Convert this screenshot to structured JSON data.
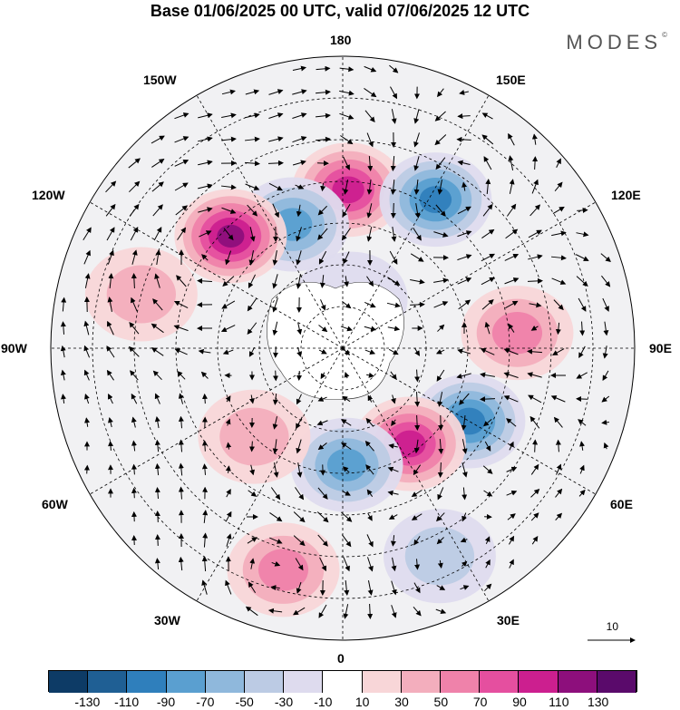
{
  "title": "Base 01/06/2025 00 UTC, valid 07/06/2025 12 UTC",
  "brand": "MODES",
  "brand_mark": "©",
  "longitude_labels": {
    "n180": "180",
    "w150": "150W",
    "e150": "150E",
    "w120": "120W",
    "e120": "120E",
    "w90": "90W",
    "e90": "90E",
    "w60": "60W",
    "e60": "60E",
    "w30": "30W",
    "e30": "30E",
    "s0": "0"
  },
  "reference_vector": "10",
  "colorbar": {
    "colors": [
      "#0d3b66",
      "#1f5f94",
      "#2f7fbc",
      "#5a9fd0",
      "#8fb8dc",
      "#bccbe4",
      "#dedbee",
      "#ffffff",
      "#f8d6d8",
      "#f3aebd",
      "#ef82aa",
      "#e54f9f",
      "#cc1f8f",
      "#8d0f7c",
      "#5a0a6b"
    ],
    "labels": [
      "-130",
      "-110",
      "-90",
      "-70",
      "-50",
      "-30",
      "-10",
      "10",
      "30",
      "50",
      "70",
      "90",
      "110",
      "130"
    ]
  },
  "anomaly_centers": [
    {
      "lon": 178,
      "lat": 52,
      "value": 90
    },
    {
      "lon": 148,
      "lat": 48,
      "value": -90
    },
    {
      "lon": -158,
      "lat": 58,
      "value": -70
    },
    {
      "lon": -135,
      "lat": 52,
      "value": 110
    },
    {
      "lon": 95,
      "lat": 48,
      "value": 50
    },
    {
      "lon": 60,
      "lat": 55,
      "value": -90
    },
    {
      "lon": 35,
      "lat": 62,
      "value": 90
    },
    {
      "lon": 2,
      "lat": 62,
      "value": -70
    },
    {
      "lon": -15,
      "lat": 35,
      "value": 50
    },
    {
      "lon": -105,
      "lat": 40,
      "value": 30
    },
    {
      "lon": -45,
      "lat": 60,
      "value": 30
    },
    {
      "lon": 25,
      "lat": 35,
      "value": -30
    },
    {
      "lon": 170,
      "lat": 78,
      "value": -10
    }
  ]
}
